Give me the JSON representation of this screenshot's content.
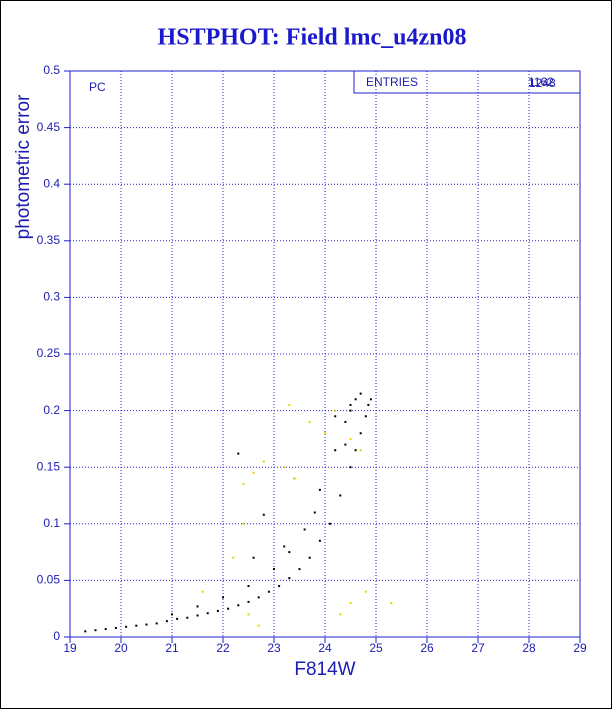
{
  "chart_data": {
    "type": "scatter",
    "title": "HSTPHOT: Field lmc_u4zn08",
    "x_label": "F814W",
    "y_label": "photometric error",
    "annotation": "PC",
    "stats_label": "ENTRIES",
    "stats_values": [
      "1162",
      "1248"
    ],
    "xlim": [
      19,
      29
    ],
    "ylim": [
      0,
      0.5
    ],
    "xticks": [
      19,
      20,
      21,
      22,
      23,
      24,
      25,
      26,
      27,
      28,
      29
    ],
    "yticks": [
      0,
      0.05,
      0.1,
      0.15,
      0.2,
      0.25,
      0.3,
      0.35,
      0.4,
      0.45,
      0.5
    ],
    "grid": true,
    "series": [
      {
        "color": "#000000",
        "x": [
          19.3,
          19.5,
          19.7,
          19.9,
          20.1,
          20.3,
          20.5,
          20.7,
          20.9,
          21.1,
          21.3,
          21.5,
          21.7,
          21.9,
          22.1,
          22.3,
          22.5,
          22.7,
          22.9,
          23.1,
          23.3,
          23.5,
          23.7,
          23.9,
          24.1,
          24.3,
          24.5,
          24.6,
          24.7,
          24.8,
          24.9,
          24.85,
          24.7,
          24.6,
          24.5,
          21.0,
          21.5,
          22.0,
          22.5,
          23.0,
          23.3,
          23.6,
          23.9,
          24.2,
          24.4,
          24.5,
          22.3,
          22.8,
          23.4,
          24.2,
          23.8,
          24.4,
          22.6,
          23.2
        ],
        "values": [
          0.005,
          0.006,
          0.007,
          0.008,
          0.009,
          0.01,
          0.011,
          0.012,
          0.014,
          0.016,
          0.017,
          0.019,
          0.021,
          0.023,
          0.025,
          0.028,
          0.031,
          0.035,
          0.04,
          0.045,
          0.052,
          0.06,
          0.07,
          0.085,
          0.1,
          0.125,
          0.15,
          0.165,
          0.18,
          0.195,
          0.21,
          0.205,
          0.215,
          0.21,
          0.2,
          0.02,
          0.027,
          0.035,
          0.045,
          0.06,
          0.075,
          0.095,
          0.13,
          0.165,
          0.19,
          0.205,
          0.162,
          0.108,
          0.14,
          0.195,
          0.11,
          0.17,
          0.07,
          0.08
        ]
      },
      {
        "color": "#e8d000",
        "x": [
          21.6,
          22.2,
          22.4,
          22.6,
          22.8,
          23.2,
          23.4,
          23.7,
          24.0,
          24.2,
          24.5,
          24.7,
          24.5,
          24.8,
          25.3,
          24.3,
          22.5,
          22.7,
          23.3,
          22.4
        ],
        "values": [
          0.04,
          0.07,
          0.135,
          0.145,
          0.155,
          0.15,
          0.14,
          0.19,
          0.18,
          0.2,
          0.175,
          0.165,
          0.03,
          0.04,
          0.03,
          0.02,
          0.02,
          0.01,
          0.205,
          0.1
        ]
      }
    ]
  }
}
